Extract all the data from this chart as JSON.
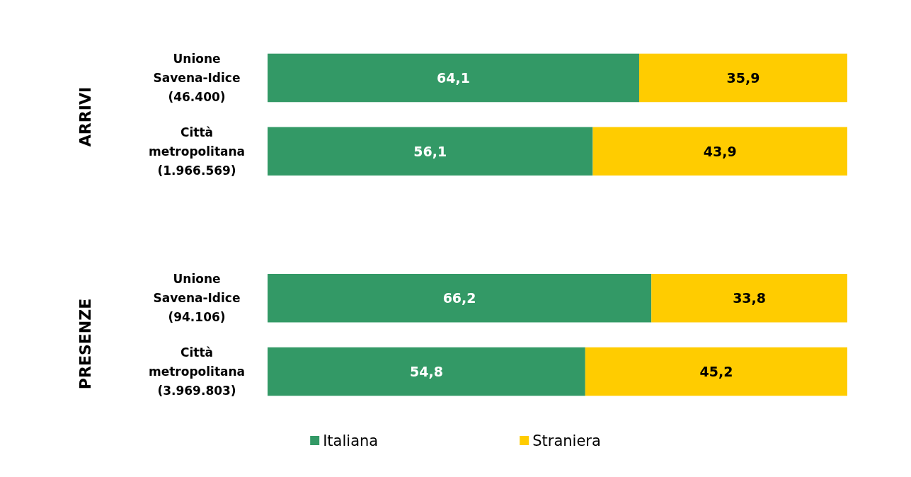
{
  "chart_data": {
    "type": "bar",
    "orientation": "horizontal",
    "stacked": true,
    "categories": [
      "Unione\nSavena-Idice\n(46.400)",
      "Città\nmetropolitana\n(1.966.569)",
      null,
      "Unione\nSavena-Idice\n(94.106)",
      "Città\nmetropolitana\n(3.969.803)"
    ],
    "series": [
      {
        "name": "Italiana",
        "color": "#339966",
        "values": [
          64.1,
          56.1,
          null,
          66.2,
          54.8
        ],
        "value_labels": [
          "64,1",
          "56,1",
          null,
          "66,2",
          "54,8"
        ]
      },
      {
        "name": "Straniera",
        "color": "#ffcc00",
        "values": [
          35.9,
          43.9,
          null,
          33.8,
          45.2
        ],
        "value_labels": [
          "35,9",
          "43,9",
          null,
          "33,8",
          "45,2"
        ]
      }
    ],
    "xlim": [
      0,
      100
    ],
    "tick_labels": "y",
    "legend": "bottom",
    "annotations": [
      "ARRIVI",
      "PRESENZE"
    ]
  }
}
